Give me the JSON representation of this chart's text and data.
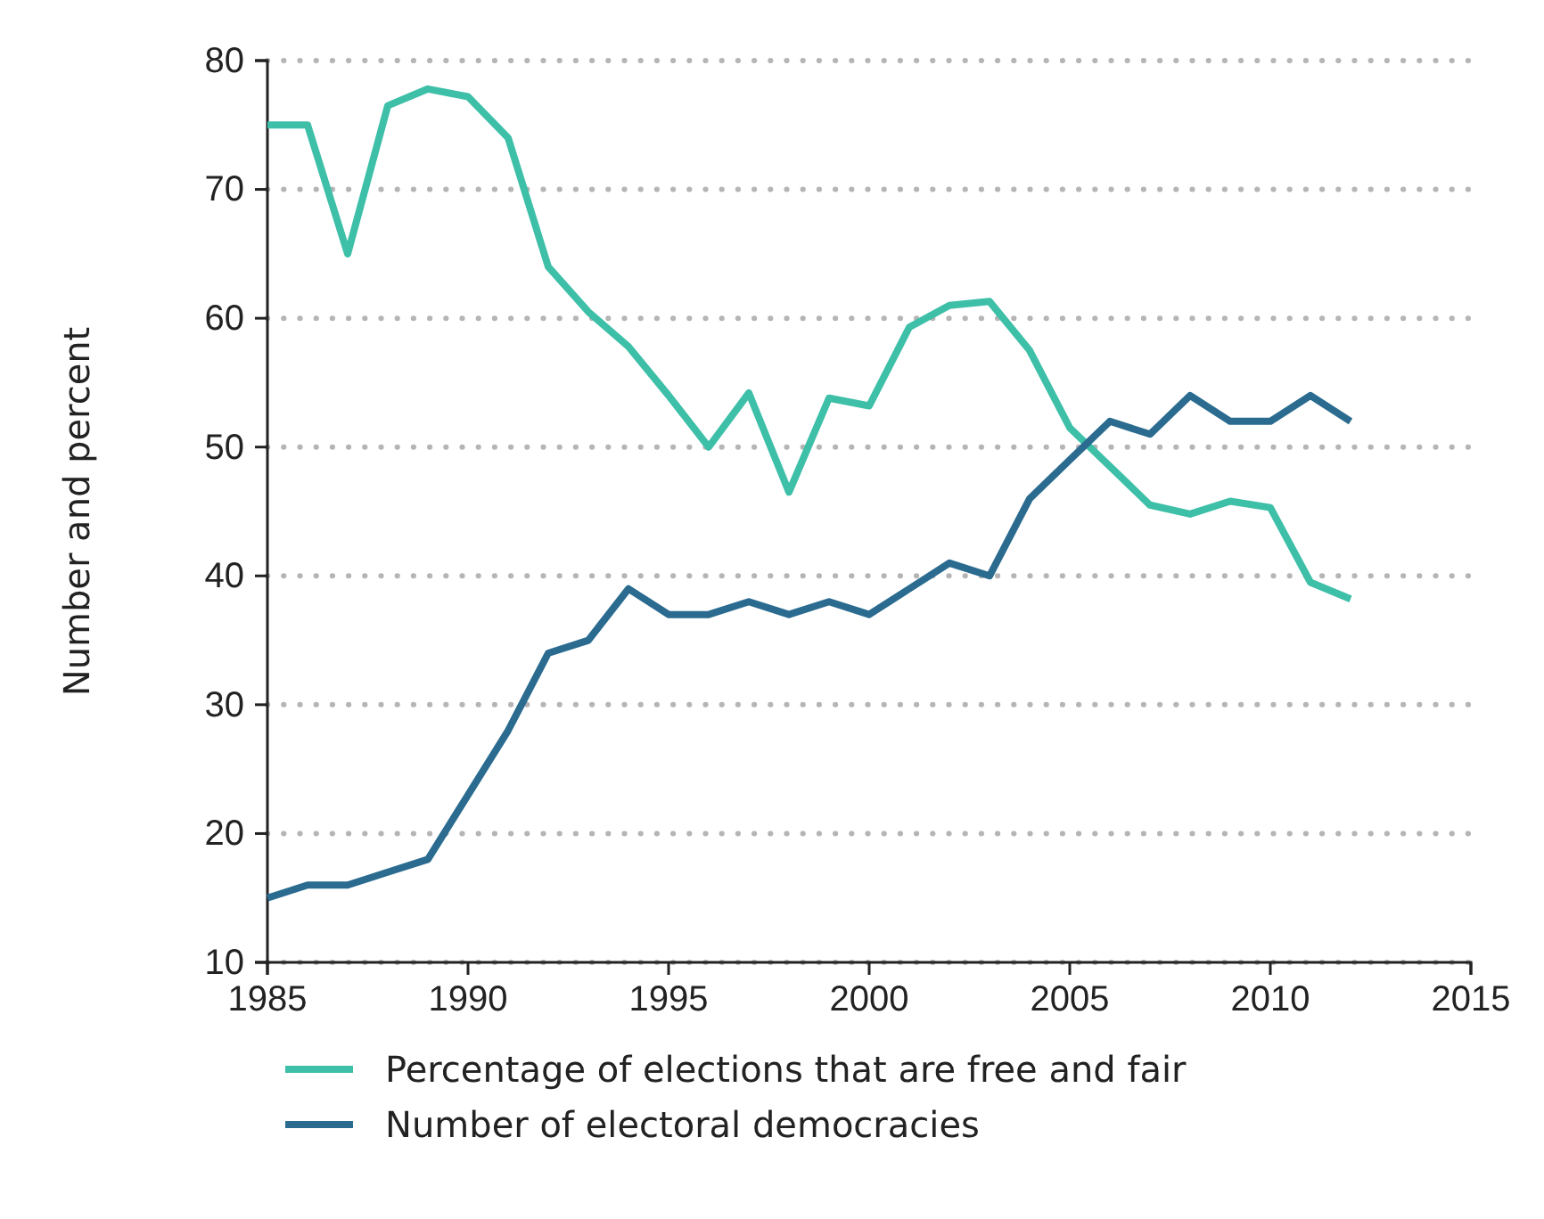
{
  "chart_data": {
    "type": "line",
    "ylabel": "Number and percent",
    "x": [
      1985,
      1986,
      1987,
      1988,
      1989,
      1990,
      1991,
      1992,
      1993,
      1994,
      1995,
      1996,
      1997,
      1998,
      1999,
      2000,
      2001,
      2002,
      2003,
      2004,
      2005,
      2006,
      2007,
      2008,
      2009,
      2010,
      2011,
      2012
    ],
    "series": [
      {
        "name": "Percentage of elections that are free and fair",
        "color": "#3dbfa8",
        "values": [
          75,
          75,
          65,
          76.5,
          77.8,
          77.2,
          74,
          64,
          60.5,
          57.8,
          54,
          50,
          54.2,
          46.5,
          53.8,
          53.2,
          59.3,
          61,
          61.3,
          57.5,
          51.5,
          48.5,
          45.5,
          44.8,
          45.8,
          45.3,
          39.5,
          38.2
        ]
      },
      {
        "name": "Number of electoral democracies",
        "color": "#2a6b8f",
        "values": [
          15,
          16,
          16,
          17,
          18,
          23,
          28,
          34,
          35,
          39,
          37,
          37,
          38,
          37,
          38,
          37,
          39,
          41,
          40,
          46,
          49,
          52,
          51,
          54,
          52,
          52,
          54,
          52
        ]
      }
    ],
    "xlim": [
      1985,
      2015
    ],
    "xticks": [
      1985,
      1990,
      1995,
      2000,
      2005,
      2010,
      2015
    ],
    "ylim": [
      10,
      80
    ],
    "yticks": [
      10,
      20,
      30,
      40,
      50,
      60,
      70,
      80
    ],
    "grid": "y",
    "legend": "bottom",
    "marker": "none",
    "line_style": "solid"
  }
}
